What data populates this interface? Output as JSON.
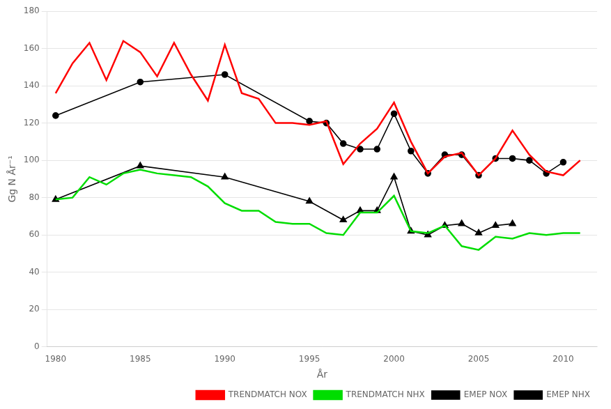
{
  "chart_data": {
    "type": "line",
    "xlabel": "År",
    "ylabel": "Gg N År⁻¹",
    "xlim": [
      1979.5,
      2012
    ],
    "xticks": [
      1980,
      1985,
      1990,
      1995,
      2000,
      2005,
      2010
    ],
    "ylim": [
      0,
      180
    ],
    "yticks": [
      0,
      20,
      40,
      60,
      80,
      100,
      120,
      140,
      160,
      180
    ],
    "grid": "y",
    "legend": "lower right",
    "series": [
      {
        "name": "TRENDMATCH NOX",
        "color": "#ff0000",
        "marker": "none",
        "line_style": "solid",
        "x": [
          1980,
          1981,
          1982,
          1983,
          1984,
          1985,
          1986,
          1987,
          1988,
          1989,
          1990,
          1991,
          1992,
          1993,
          1994,
          1995,
          1996,
          1997,
          1998,
          1999,
          2000,
          2001,
          2002,
          2003,
          2004,
          2005,
          2006,
          2007,
          2008,
          2009,
          2010,
          2011
        ],
        "values": [
          136,
          152,
          163,
          143,
          164,
          158,
          145,
          163,
          146,
          132,
          162,
          136,
          133,
          120,
          120,
          119,
          121,
          98,
          109,
          117,
          131,
          110,
          93,
          102,
          104,
          92,
          101,
          116,
          103,
          94,
          92,
          100
        ]
      },
      {
        "name": "TRENDMATCH NHX",
        "color": "#00dd00",
        "marker": "none",
        "line_style": "solid",
        "x": [
          1980,
          1981,
          1982,
          1983,
          1984,
          1985,
          1986,
          1987,
          1988,
          1989,
          1990,
          1991,
          1992,
          1993,
          1994,
          1995,
          1996,
          1997,
          1998,
          1999,
          2000,
          2001,
          2002,
          2003,
          2004,
          2005,
          2006,
          2007,
          2008,
          2009,
          2010,
          2011
        ],
        "values": [
          79,
          80,
          91,
          87,
          93,
          95,
          93,
          92,
          91,
          86,
          77,
          73,
          73,
          67,
          66,
          66,
          61,
          60,
          72,
          72,
          81,
          62,
          61,
          65,
          54,
          52,
          59,
          58,
          61,
          60,
          61,
          61
        ]
      },
      {
        "name": "EMEP NOX",
        "color": "#000000",
        "marker": "circle",
        "line_style": "solid",
        "x": [
          1980,
          1985,
          1990,
          1995,
          1996,
          1997,
          1998,
          1999,
          2000,
          2001,
          2002,
          2003,
          2004,
          2005,
          2006,
          2007,
          2008,
          2009,
          2010
        ],
        "values": [
          124,
          142,
          146,
          121,
          120,
          109,
          106,
          106,
          125,
          105,
          93,
          103,
          103,
          92,
          101,
          101,
          100,
          93,
          99
        ]
      },
      {
        "name": "EMEP NHX",
        "color": "#000000",
        "marker": "triangle",
        "line_style": "solid",
        "x": [
          1980,
          1985,
          1990,
          1995,
          1997,
          1998,
          1999,
          2000,
          2001,
          2002,
          2003,
          2004,
          2005,
          2006,
          2007
        ],
        "values": [
          79,
          97,
          91,
          78,
          68,
          73,
          73,
          91,
          62,
          60,
          65,
          66,
          61,
          65,
          66
        ]
      }
    ]
  }
}
